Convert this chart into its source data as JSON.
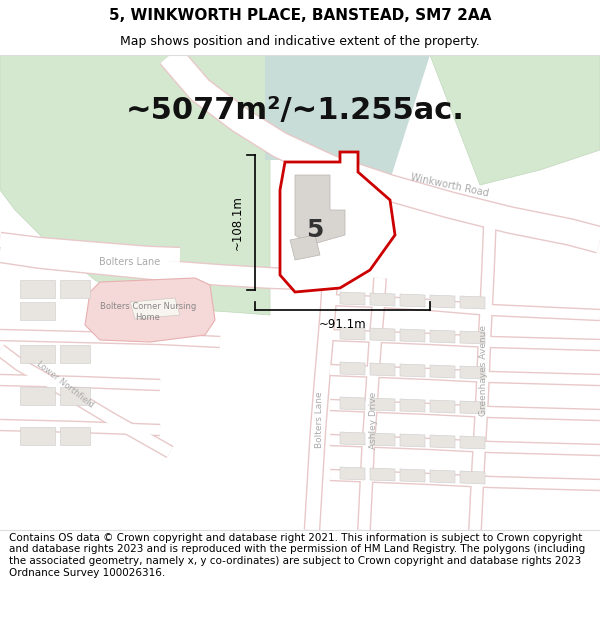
{
  "title_line1": "5, WINKWORTH PLACE, BANSTEAD, SM7 2AA",
  "title_line2": "Map shows position and indicative extent of the property.",
  "area_text": "~5077m²/~1.255ac.",
  "dim_vertical": "~108.1m",
  "dim_horizontal": "~91.1m",
  "label_number": "5",
  "road_label_winkworth": "Winkworth Road",
  "road_label_bolters_h": "Bolters Lane",
  "road_label_bolters_v": "Bolters Lane",
  "road_label_ashley": "Ashley Drive",
  "road_label_greenhayes": "Greenhayes Avenue",
  "road_label_lower": "Lower Northfield",
  "nursing_home_label": "Bolters Corner Nursing\nHome",
  "footer_text": "Contains OS data © Crown copyright and database right 2021. This information is subject to Crown copyright and database rights 2023 and is reproduced with the permission of HM Land Registry. The polygons (including the associated geometry, namely x, y co-ordinates) are subject to Crown copyright and database rights 2023 Ordnance Survey 100026316.",
  "map_bg": "#f5f3f0",
  "road_fill": "#ffffff",
  "road_outline": "#e8b8b8",
  "building_fill": "#e8e4e0",
  "building_outline": "#cccccc",
  "green_fill": "#d4e8d0",
  "green_outline": "#c0d8bc",
  "teal_fill": "#c8ddd8",
  "pink_fill": "#f5d8d8",
  "pink_outline": "#e8b0b0",
  "property_fill": "#ffffff",
  "property_outline": "#cc0000",
  "dim_line_color": "#000000",
  "title_bg": "#ffffff",
  "footer_bg": "#ffffff",
  "title_fontsize": 11,
  "subtitle_fontsize": 9,
  "area_fontsize": 22,
  "footer_fontsize": 7.5,
  "label_fontsize": 18,
  "road_label_color": "#aaaaaa",
  "road_label_size": 7
}
